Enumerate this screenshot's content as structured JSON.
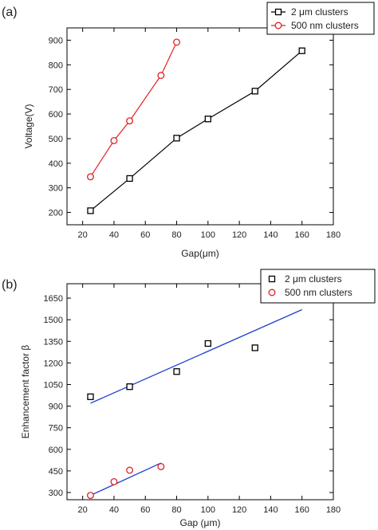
{
  "chart_data": [
    {
      "panel_label": "(a)",
      "type": "line",
      "xlabel": "Gap(μm)",
      "ylabel": "Voltage(V)",
      "xlim": [
        10,
        180
      ],
      "ylim": [
        150,
        950
      ],
      "xticks": [
        20,
        40,
        60,
        80,
        100,
        120,
        140,
        160,
        180
      ],
      "yticks": [
        200,
        300,
        400,
        500,
        600,
        700,
        800,
        900
      ],
      "legend_position": "top-right",
      "series": [
        {
          "name": "2 μm clusters",
          "marker": "square",
          "color": "#000000",
          "line_color": "#000000",
          "x": [
            25,
            50,
            80,
            100,
            130,
            160
          ],
          "y": [
            207,
            338,
            502,
            580,
            693,
            857
          ]
        },
        {
          "name": "500 nm clusters",
          "marker": "circle",
          "color": "#e02020",
          "line_color": "#e02020",
          "x": [
            25,
            40,
            50,
            70,
            80
          ],
          "y": [
            345,
            492,
            572,
            757,
            892
          ]
        }
      ]
    },
    {
      "panel_label": "(b)",
      "type": "scatter",
      "xlabel": "Gap (μm)",
      "ylabel": "Enhancement factor β",
      "xlim": [
        10,
        180
      ],
      "ylim": [
        250,
        1750
      ],
      "xticks": [
        20,
        40,
        60,
        80,
        100,
        120,
        140,
        160,
        180
      ],
      "yticks": [
        300,
        450,
        600,
        750,
        900,
        1050,
        1200,
        1350,
        1500,
        1650
      ],
      "legend_position": "top-right",
      "fit_line_color": "#2040d0",
      "series": [
        {
          "name": "2 μm clusters",
          "marker": "square",
          "color": "#000000",
          "x": [
            25,
            50,
            80,
            100,
            130,
            160
          ],
          "y": [
            965,
            1035,
            1140,
            1335,
            1305,
            1660
          ],
          "fit": {
            "x": [
              25,
              160
            ],
            "y": [
              920,
              1570
            ]
          }
        },
        {
          "name": "500 nm clusters",
          "marker": "circle",
          "color": "#e02020",
          "x": [
            25,
            40,
            50,
            70
          ],
          "y": [
            280,
            375,
            455,
            480
          ],
          "fit": {
            "x": [
              25,
              70
            ],
            "y": [
              280,
              505
            ]
          }
        }
      ]
    }
  ]
}
